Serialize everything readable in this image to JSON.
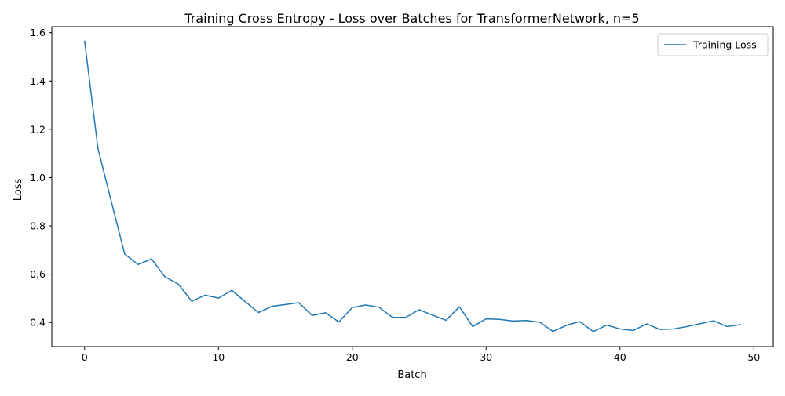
{
  "chart_data": {
    "type": "line",
    "title": "Training Cross Entropy - Loss over Batches for TransformerNetwork, n=5",
    "xlabel": "Batch",
    "ylabel": "Loss",
    "xlim": [
      -2.45,
      51.45
    ],
    "ylim": [
      0.3,
      1.625
    ],
    "xticks": [
      0,
      10,
      20,
      30,
      40,
      50
    ],
    "yticks": [
      0.4,
      0.6,
      0.8,
      1.0,
      1.2,
      1.4,
      1.6
    ],
    "xtick_labels": [
      "0",
      "10",
      "20",
      "30",
      "40",
      "50"
    ],
    "ytick_labels": [
      "0.4",
      "0.6",
      "0.8",
      "1.0",
      "1.2",
      "1.4",
      "1.6"
    ],
    "grid": false,
    "legend_position": "top-right",
    "series": [
      {
        "name": "Training Loss",
        "color": "#1f77b4",
        "x": [
          0,
          1,
          2,
          3,
          4,
          5,
          6,
          7,
          8,
          9,
          10,
          11,
          12,
          13,
          14,
          15,
          16,
          17,
          18,
          19,
          20,
          21,
          22,
          23,
          24,
          25,
          26,
          27,
          28,
          29,
          30,
          31,
          32,
          33,
          34,
          35,
          36,
          37,
          38,
          39,
          40,
          41,
          42,
          43,
          44,
          45,
          46,
          47,
          48,
          49
        ],
        "values": [
          1.565,
          1.12,
          0.9,
          0.683,
          0.64,
          0.663,
          0.589,
          0.559,
          0.488,
          0.513,
          0.501,
          0.533,
          0.486,
          0.441,
          0.467,
          0.474,
          0.482,
          0.429,
          0.44,
          0.402,
          0.462,
          0.472,
          0.463,
          0.421,
          0.421,
          0.453,
          0.43,
          0.409,
          0.465,
          0.383,
          0.415,
          0.413,
          0.406,
          0.408,
          0.401,
          0.363,
          0.388,
          0.404,
          0.362,
          0.389,
          0.373,
          0.367,
          0.394,
          0.371,
          0.373,
          0.383,
          0.395,
          0.407,
          0.383,
          0.391
        ]
      }
    ]
  }
}
